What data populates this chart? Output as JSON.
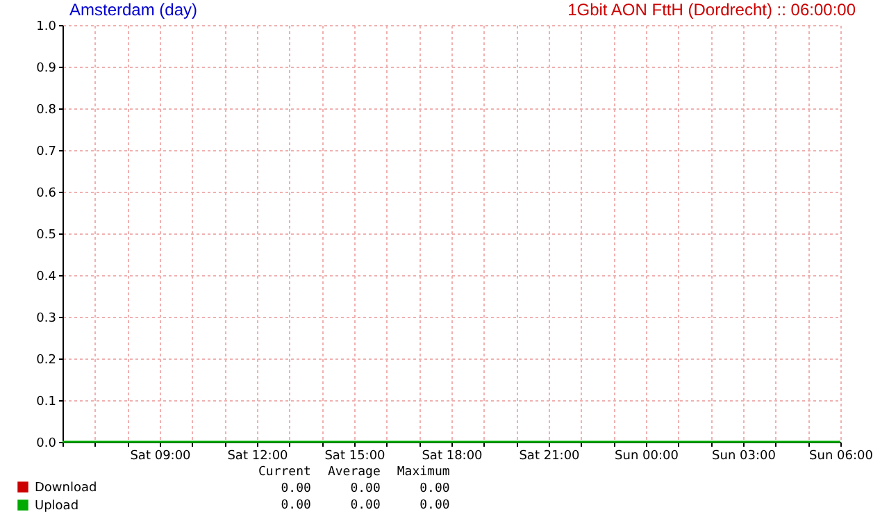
{
  "chart_data": {
    "type": "line",
    "title": "Amsterdam (day)",
    "subtitle": "1Gbit AON FttH (Dordrecht) :: 06:00:00",
    "categories": [
      null,
      null,
      null,
      "Sat 09:00",
      null,
      null,
      "Sat 12:00",
      null,
      null,
      "Sat 15:00",
      null,
      null,
      "Sat 18:00",
      null,
      null,
      "Sat 21:00",
      null,
      null,
      "Sun 00:00",
      null,
      null,
      "Sun 03:00",
      null,
      null,
      "Sun 06:00"
    ],
    "series": [
      {
        "name": "Download",
        "color": "#cc0000",
        "values": [
          null,
          null,
          null,
          null,
          null,
          null,
          null,
          null,
          null,
          null,
          null,
          null,
          null,
          null,
          null,
          null,
          null,
          null,
          null,
          null,
          null,
          null,
          null,
          null,
          null
        ]
      },
      {
        "name": "Upload",
        "color": "#00aa00",
        "values": [
          0,
          0,
          0,
          0,
          0,
          0,
          0,
          0,
          0,
          0,
          0,
          0,
          0,
          0,
          0,
          0,
          0,
          0,
          0,
          0,
          0,
          0,
          0,
          0,
          0
        ]
      }
    ],
    "ylim": [
      0,
      1
    ],
    "yticks": [
      {
        "value": 0,
        "label": "0.0"
      },
      0.1,
      0.2,
      0.3,
      0.4,
      0.5,
      0.6,
      0.7,
      0.8,
      0.9,
      {
        "value": 1,
        "label": "1.0"
      }
    ],
    "grid": true,
    "legend": "bottom left",
    "marker": "none",
    "line_style": "solid",
    "annotations": [
      "Current",
      "Average",
      "Maximum",
      "0.00",
      "0.00",
      "0.00",
      "0.00",
      "0.00",
      "0.00"
    ]
  }
}
